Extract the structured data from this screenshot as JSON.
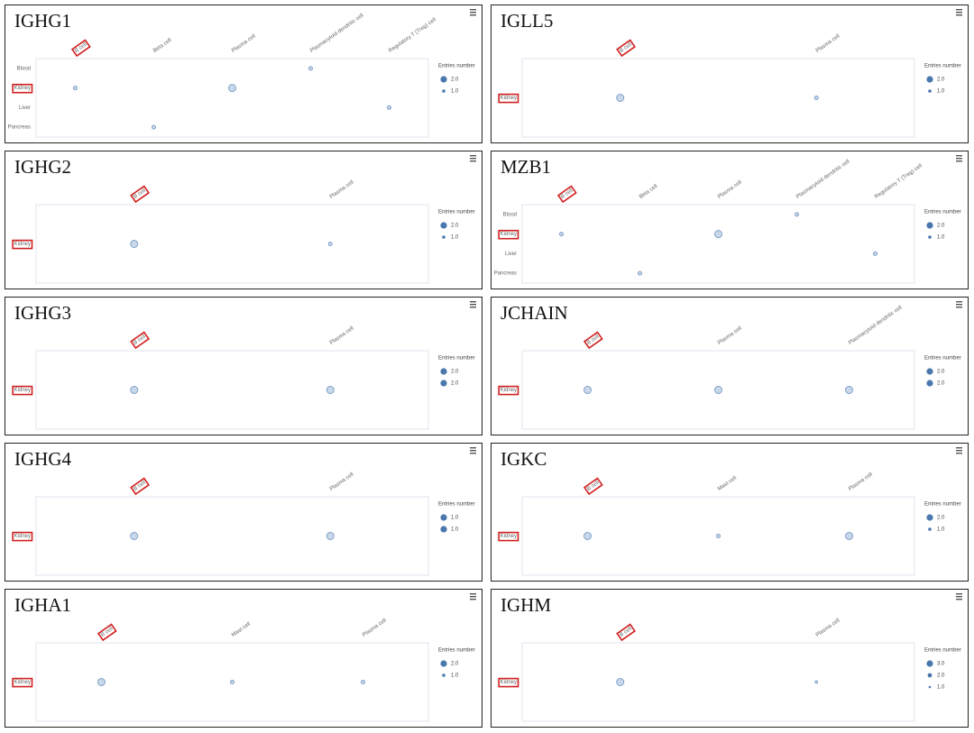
{
  "chart_data": [
    {
      "type": "bubble",
      "title": "IGHG1",
      "xcategories": [
        "B cell",
        "Beta cell",
        "Plasma cell",
        "Plasmacytoid dendritic cell",
        "Regulatory T (Treg) cell"
      ],
      "ycategories": [
        "Blood",
        "Kidney",
        "Liver",
        "Pancreas"
      ],
      "points": [
        {
          "x": "B cell",
          "y": "Kidney",
          "size": 1
        },
        {
          "x": "Beta cell",
          "y": "Pancreas",
          "size": 1
        },
        {
          "x": "Plasma cell",
          "y": "Kidney",
          "size": 2
        },
        {
          "x": "Plasmacytoid dendritic cell",
          "y": "Blood",
          "size": 1
        },
        {
          "x": "Regulatory T (Treg) cell",
          "y": "Liver",
          "size": 1
        }
      ],
      "legend": {
        "title": "Entries number",
        "values": [
          {
            "value": 2,
            "label": "2.0"
          },
          {
            "value": 1,
            "label": "1.0"
          }
        ]
      },
      "highlight": {
        "x": 0,
        "y": 1
      },
      "color": "#4a78ad"
    },
    {
      "type": "bubble",
      "title": "IGLL5",
      "xcategories": [
        "B cell",
        "Plasma cell"
      ],
      "ycategories": [
        "Kidney"
      ],
      "points": [
        {
          "x": "B cell",
          "y": "Kidney",
          "size": 2
        },
        {
          "x": "Plasma cell",
          "y": "Kidney",
          "size": 1
        }
      ],
      "legend": {
        "title": "Entries number",
        "values": [
          {
            "value": 2,
            "label": "2.0"
          },
          {
            "value": 1,
            "label": "1.0"
          }
        ]
      },
      "highlight": {
        "x": 0,
        "y": 0
      },
      "color": "#4a78ad"
    },
    {
      "type": "bubble",
      "title": "IGHG2",
      "xcategories": [
        "B cell",
        "Plasma cell"
      ],
      "ycategories": [
        "Kidney"
      ],
      "points": [
        {
          "x": "B cell",
          "y": "Kidney",
          "size": 2
        },
        {
          "x": "Plasma cell",
          "y": "Kidney",
          "size": 1
        }
      ],
      "legend": {
        "title": "Entries number",
        "values": [
          {
            "value": 2,
            "label": "2.0"
          },
          {
            "value": 1,
            "label": "1.0"
          }
        ]
      },
      "highlight": {
        "x": 0,
        "y": 0
      },
      "color": "#4a78ad"
    },
    {
      "type": "bubble",
      "title": "MZB1",
      "xcategories": [
        "B cell",
        "Beta cell",
        "Plasma cell",
        "Plasmacytoid dendritic cell",
        "Regulatory T (Treg) cell"
      ],
      "ycategories": [
        "Blood",
        "Kidney",
        "Liver",
        "Pancreas"
      ],
      "points": [
        {
          "x": "B cell",
          "y": "Kidney",
          "size": 1
        },
        {
          "x": "Beta cell",
          "y": "Pancreas",
          "size": 1
        },
        {
          "x": "Plasma cell",
          "y": "Kidney",
          "size": 2
        },
        {
          "x": "Plasmacytoid dendritic cell",
          "y": "Blood",
          "size": 1
        },
        {
          "x": "Regulatory T (Treg) cell",
          "y": "Liver",
          "size": 1
        }
      ],
      "legend": {
        "title": "Entries number",
        "values": [
          {
            "value": 2,
            "label": "2.0"
          },
          {
            "value": 1,
            "label": "1.0"
          }
        ]
      },
      "highlight": {
        "x": 0,
        "y": 1
      },
      "color": "#4a78ad"
    },
    {
      "type": "bubble",
      "title": "IGHG3",
      "xcategories": [
        "B cell",
        "Plasma cell"
      ],
      "ycategories": [
        "Kidney"
      ],
      "points": [
        {
          "x": "B cell",
          "y": "Kidney",
          "size": 2
        },
        {
          "x": "Plasma cell",
          "y": "Kidney",
          "size": 2
        }
      ],
      "legend": {
        "title": "Entries number",
        "values": [
          {
            "value": 2,
            "label": "2.0"
          },
          {
            "value": 2,
            "label": "2.0"
          }
        ]
      },
      "highlight": {
        "x": 0,
        "y": 0
      },
      "color": "#4a78ad"
    },
    {
      "type": "bubble",
      "title": "JCHAIN",
      "xcategories": [
        "B cell",
        "Plasma cell",
        "Plasmacytoid dendritic cell"
      ],
      "ycategories": [
        "Kidney"
      ],
      "points": [
        {
          "x": "B cell",
          "y": "Kidney",
          "size": 2
        },
        {
          "x": "Plasma cell",
          "y": "Kidney",
          "size": 2
        },
        {
          "x": "Plasmacytoid dendritic cell",
          "y": "Kidney",
          "size": 2
        }
      ],
      "legend": {
        "title": "Entries number",
        "values": [
          {
            "value": 2,
            "label": "2.0"
          },
          {
            "value": 2,
            "label": "2.0"
          }
        ]
      },
      "highlight": {
        "x": 0,
        "y": 0
      },
      "color": "#4a78ad"
    },
    {
      "type": "bubble",
      "title": "IGHG4",
      "xcategories": [
        "B cell",
        "Plasma cell"
      ],
      "ycategories": [
        "Kidney"
      ],
      "points": [
        {
          "x": "B cell",
          "y": "Kidney",
          "size": 1
        },
        {
          "x": "Plasma cell",
          "y": "Kidney",
          "size": 1
        }
      ],
      "legend": {
        "title": "Entries number",
        "values": [
          {
            "value": 1,
            "label": "1.0"
          },
          {
            "value": 1,
            "label": "1.0"
          }
        ]
      },
      "highlight": {
        "x": 0,
        "y": 0
      },
      "color": "#4a78ad"
    },
    {
      "type": "bubble",
      "title": "IGKC",
      "xcategories": [
        "B cell",
        "Mast cell",
        "Plasma cell"
      ],
      "ycategories": [
        "Kidney"
      ],
      "points": [
        {
          "x": "B cell",
          "y": "Kidney",
          "size": 2
        },
        {
          "x": "Mast cell",
          "y": "Kidney",
          "size": 1
        },
        {
          "x": "Plasma cell",
          "y": "Kidney",
          "size": 2
        }
      ],
      "legend": {
        "title": "Entries number",
        "values": [
          {
            "value": 2,
            "label": "2.0"
          },
          {
            "value": 1,
            "label": "1.0"
          }
        ]
      },
      "highlight": {
        "x": 0,
        "y": 0
      },
      "color": "#4a78ad"
    },
    {
      "type": "bubble",
      "title": "IGHA1",
      "xcategories": [
        "B cell",
        "Mast cell",
        "Plasma cell"
      ],
      "ycategories": [
        "Kidney"
      ],
      "points": [
        {
          "x": "B cell",
          "y": "Kidney",
          "size": 2
        },
        {
          "x": "Mast cell",
          "y": "Kidney",
          "size": 1
        },
        {
          "x": "Plasma cell",
          "y": "Kidney",
          "size": 1
        }
      ],
      "legend": {
        "title": "Entries number",
        "values": [
          {
            "value": 2,
            "label": "2.0"
          },
          {
            "value": 1,
            "label": "1.0"
          }
        ]
      },
      "highlight": {
        "x": 0,
        "y": 0
      },
      "color": "#4a78ad"
    },
    {
      "type": "bubble",
      "title": "IGHM",
      "xcategories": [
        "B cell",
        "Plasma cell"
      ],
      "ycategories": [
        "Kidney"
      ],
      "points": [
        {
          "x": "B cell",
          "y": "Kidney",
          "size": 3
        },
        {
          "x": "Plasma cell",
          "y": "Kidney",
          "size": 1
        }
      ],
      "legend": {
        "title": "Entries number",
        "values": [
          {
            "value": 3,
            "label": "3.0"
          },
          {
            "value": 2,
            "label": "2.0"
          },
          {
            "value": 1,
            "label": "1.0"
          }
        ]
      },
      "highlight": {
        "x": 0,
        "y": 0
      },
      "color": "#4a78ad"
    }
  ]
}
